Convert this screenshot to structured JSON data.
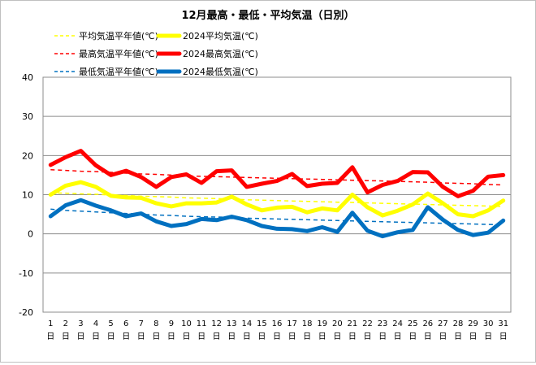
{
  "chart_data": {
    "type": "line",
    "title": "12月最高・最低・平均気温（日別）",
    "ylim": [
      -20,
      40
    ],
    "yticks": [
      -20,
      -10,
      0,
      10,
      20,
      30,
      40
    ],
    "grid": true,
    "legend_position": "top",
    "day_suffix": "日",
    "categories": [
      "1",
      "2",
      "3",
      "4",
      "5",
      "6",
      "7",
      "8",
      "9",
      "10",
      "11",
      "12",
      "13",
      "14",
      "15",
      "16",
      "17",
      "18",
      "19",
      "20",
      "21",
      "22",
      "23",
      "24",
      "25",
      "26",
      "27",
      "28",
      "29",
      "30",
      "31"
    ],
    "series": [
      {
        "name": "平均気温平年値(℃)",
        "color": "#FFFF00",
        "style": "dashed",
        "values": [
          10.5,
          10.4,
          10.2,
          10.1,
          9.9,
          9.8,
          9.6,
          9.5,
          9.4,
          9.2,
          9.1,
          9.0,
          8.9,
          8.7,
          8.6,
          8.5,
          8.4,
          8.3,
          8.2,
          8.1,
          8.0,
          7.9,
          7.8,
          7.7,
          7.6,
          7.5,
          7.4,
          7.3,
          7.2,
          7.1,
          7.0
        ]
      },
      {
        "name": "2024平均気温(℃)",
        "color": "#FFFF00",
        "style": "solid",
        "values": [
          10.0,
          12.3,
          13.2,
          12.0,
          9.7,
          9.3,
          9.2,
          7.8,
          7.0,
          7.8,
          7.8,
          8.0,
          9.5,
          7.5,
          6.0,
          6.7,
          6.9,
          5.5,
          6.5,
          6.0,
          10.0,
          6.8,
          4.7,
          5.9,
          7.5,
          10.3,
          7.8,
          5.0,
          4.5,
          6.0,
          8.5
        ]
      },
      {
        "name": "最高気温平年値(℃)",
        "color": "#FF0000",
        "style": "dashed",
        "values": [
          16.4,
          16.2,
          16.0,
          15.9,
          15.7,
          15.5,
          15.3,
          15.2,
          15.0,
          14.8,
          14.7,
          14.6,
          14.5,
          14.4,
          14.3,
          14.2,
          14.1,
          14.0,
          13.9,
          13.8,
          13.7,
          13.6,
          13.5,
          13.4,
          13.3,
          13.2,
          13.0,
          12.9,
          12.8,
          12.6,
          12.5
        ]
      },
      {
        "name": "2024最高気温(℃)",
        "color": "#FF0000",
        "style": "solid",
        "values": [
          17.6,
          19.6,
          21.2,
          17.5,
          15.0,
          16.1,
          14.5,
          12.0,
          14.5,
          15.2,
          13.0,
          16.0,
          16.2,
          12.0,
          12.8,
          13.5,
          15.3,
          12.2,
          12.8,
          13.0,
          17.0,
          10.6,
          12.5,
          13.5,
          15.8,
          15.7,
          12.0,
          9.6,
          11.0,
          14.6,
          15.0
        ]
      },
      {
        "name": "最低気温平年値(℃)",
        "color": "#0070C0",
        "style": "dashed",
        "values": [
          6.3,
          6.0,
          5.8,
          5.6,
          5.4,
          5.2,
          5.0,
          4.8,
          4.7,
          4.5,
          4.4,
          4.3,
          4.2,
          4.0,
          3.9,
          3.8,
          3.7,
          3.6,
          3.5,
          3.4,
          3.3,
          3.2,
          3.1,
          3.0,
          2.9,
          2.8,
          2.7,
          2.6,
          2.5,
          2.4,
          2.3
        ]
      },
      {
        "name": "2024最低気温(℃)",
        "color": "#0070C0",
        "style": "solid",
        "values": [
          4.5,
          7.3,
          8.6,
          7.2,
          6.0,
          4.5,
          5.2,
          3.2,
          2.0,
          2.5,
          3.8,
          3.5,
          4.4,
          3.5,
          2.0,
          1.3,
          1.2,
          0.7,
          1.7,
          0.5,
          5.4,
          0.8,
          -0.6,
          0.4,
          1.0,
          6.8,
          3.6,
          1.0,
          -0.3,
          0.3,
          3.4
        ]
      }
    ]
  }
}
